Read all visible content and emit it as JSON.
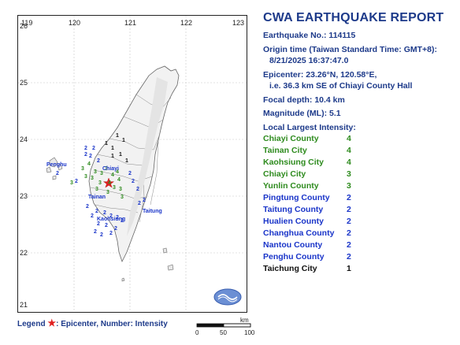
{
  "map": {
    "lon_labels": [
      "119",
      "120",
      "121",
      "122",
      "123"
    ],
    "lat_labels": [
      "26",
      "25",
      "24",
      "23",
      "22",
      "21"
    ],
    "place_labels": {
      "penghu": "Penghu",
      "chiayi": "Chiayi",
      "tainan": "Tainan",
      "kaohsiung": "Kaohsiung",
      "taitung": "Taitung"
    },
    "intensity_marks": {
      "green": [
        "4",
        "3",
        "3",
        "3",
        "3",
        "4",
        "3",
        "3",
        "3",
        "4",
        "4",
        "3",
        "3",
        "3",
        "3",
        "4",
        "3",
        "3"
      ],
      "blue": [
        "2",
        "2",
        "2",
        "2",
        "2",
        "2",
        "2",
        "2",
        "2",
        "2",
        "2",
        "2",
        "2",
        "2",
        "2",
        "2",
        "2",
        "2",
        "2",
        "2",
        "2",
        "2",
        "2",
        "2",
        "2"
      ],
      "black": [
        "1",
        "1",
        "1",
        "1",
        "1",
        "1",
        "1"
      ]
    },
    "colors": {
      "green": "#2e8b1e",
      "blue": "#1a35c9",
      "black": "#111111",
      "epicenter": "#e02020"
    }
  },
  "report": {
    "title": "CWA EARTHQUAKE REPORT",
    "quake_no": "Earthquake No.: 114115",
    "origin_label": "Origin time (Taiwan Standard Time: GMT+8):",
    "origin_value": "8/21/2025 16:37:47.0",
    "epicenter": "Epicenter: 23.26°N, 120.58°E,",
    "epicenter_desc": "i.e. 36.3 km SE of Chiayi County Hall",
    "depth": "Focal depth: 10.4 km",
    "magnitude": "Magnitude (ML): 5.1",
    "intensity_heading": "Local Largest Intensity:",
    "intensities": [
      {
        "name": "Chiayi County",
        "level": "4",
        "color": "#2e8b1e"
      },
      {
        "name": "Tainan City",
        "level": "4",
        "color": "#2e8b1e"
      },
      {
        "name": "Kaohsiung City",
        "level": "4",
        "color": "#2e8b1e"
      },
      {
        "name": "Chiayi City",
        "level": "3",
        "color": "#2e8b1e"
      },
      {
        "name": "Yunlin County",
        "level": "3",
        "color": "#2e8b1e"
      },
      {
        "name": "Pingtung County",
        "level": "2",
        "color": "#1a35c9"
      },
      {
        "name": "Taitung County",
        "level": "2",
        "color": "#1a35c9"
      },
      {
        "name": "Hualien County",
        "level": "2",
        "color": "#1a35c9"
      },
      {
        "name": "Changhua County",
        "level": "2",
        "color": "#1a35c9"
      },
      {
        "name": "Nantou County",
        "level": "2",
        "color": "#1a35c9"
      },
      {
        "name": "Penghu County",
        "level": "2",
        "color": "#1a35c9"
      },
      {
        "name": "Taichung City",
        "level": "1",
        "color": "#111111"
      }
    ]
  },
  "legend": {
    "label": "Legend",
    "star": "★",
    "text": ": Epicenter, Number: Intensity"
  },
  "scale": {
    "unit": "km",
    "labels": [
      "0",
      "50",
      "100"
    ]
  }
}
